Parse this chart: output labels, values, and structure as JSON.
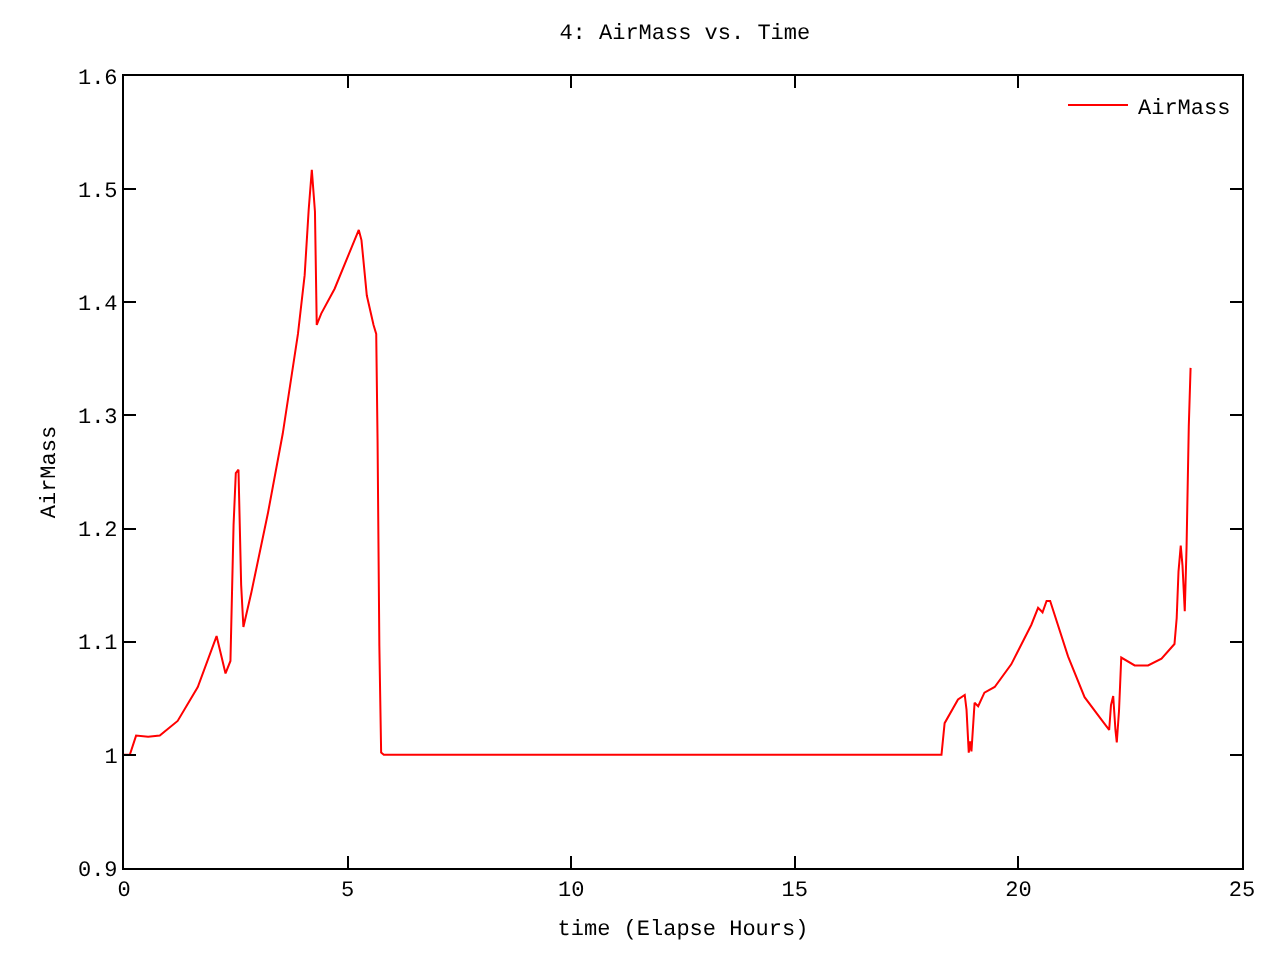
{
  "chart_data": {
    "type": "line",
    "title": "4: AirMass vs. Time",
    "xlabel": "time (Elapse Hours)",
    "ylabel": "AirMass",
    "xlim": [
      0,
      25
    ],
    "xticks": [
      0,
      5,
      10,
      15,
      20,
      25
    ],
    "ylim": [
      0.9,
      1.6
    ],
    "yticks": [
      0.9,
      1,
      1.1,
      1.2,
      1.3,
      1.4,
      1.5,
      1.6
    ],
    "grid": false,
    "legend": "top right",
    "marker": "none",
    "line_style": "solid",
    "series": [
      {
        "name": "AirMass",
        "color": "#ff0000",
        "x": [
          0,
          0.13,
          0.27,
          0.54,
          0.8,
          1.2,
          1.65,
          2.07,
          2.27,
          2.38,
          2.45,
          2.5,
          2.56,
          2.62,
          2.67,
          2.85,
          3.22,
          3.55,
          3.89,
          4.04,
          4.13,
          4.2,
          4.27,
          4.31,
          4.41,
          4.71,
          5.25,
          5.31,
          5.43,
          5.58,
          5.64,
          5.67,
          5.71,
          5.75,
          5.81,
          10,
          15,
          18.28,
          18.35,
          18.65,
          18.8,
          18.84,
          18.89,
          18.92,
          18.95,
          19.02,
          19.1,
          19.24,
          19.47,
          19.84,
          20.29,
          20.44,
          20.54,
          20.63,
          20.71,
          21.11,
          21.48,
          21.86,
          22.03,
          22.07,
          22.12,
          22.17,
          22.2,
          22.25,
          22.3,
          22.6,
          22.9,
          23.2,
          23.49,
          23.54,
          23.58,
          23.63,
          23.67,
          23.72,
          23.76,
          23.81,
          23.85
        ],
        "values": [
          1.0,
          1.0,
          1.017,
          1.016,
          1.017,
          1.03,
          1.06,
          1.105,
          1.072,
          1.083,
          1.203,
          1.249,
          1.252,
          1.15,
          1.113,
          1.144,
          1.214,
          1.284,
          1.372,
          1.424,
          1.482,
          1.517,
          1.48,
          1.38,
          1.39,
          1.412,
          1.464,
          1.455,
          1.406,
          1.38,
          1.372,
          1.278,
          1.096,
          1.002,
          1.0,
          1.0,
          1.0,
          1.0,
          1.028,
          1.049,
          1.053,
          1.04,
          1.002,
          1.012,
          1.003,
          1.046,
          1.043,
          1.055,
          1.06,
          1.08,
          1.115,
          1.13,
          1.126,
          1.136,
          1.136,
          1.087,
          1.051,
          1.031,
          1.022,
          1.044,
          1.052,
          1.022,
          1.011,
          1.039,
          1.086,
          1.079,
          1.079,
          1.085,
          1.098,
          1.121,
          1.162,
          1.185,
          1.167,
          1.127,
          1.183,
          1.29,
          1.342
        ]
      }
    ]
  }
}
